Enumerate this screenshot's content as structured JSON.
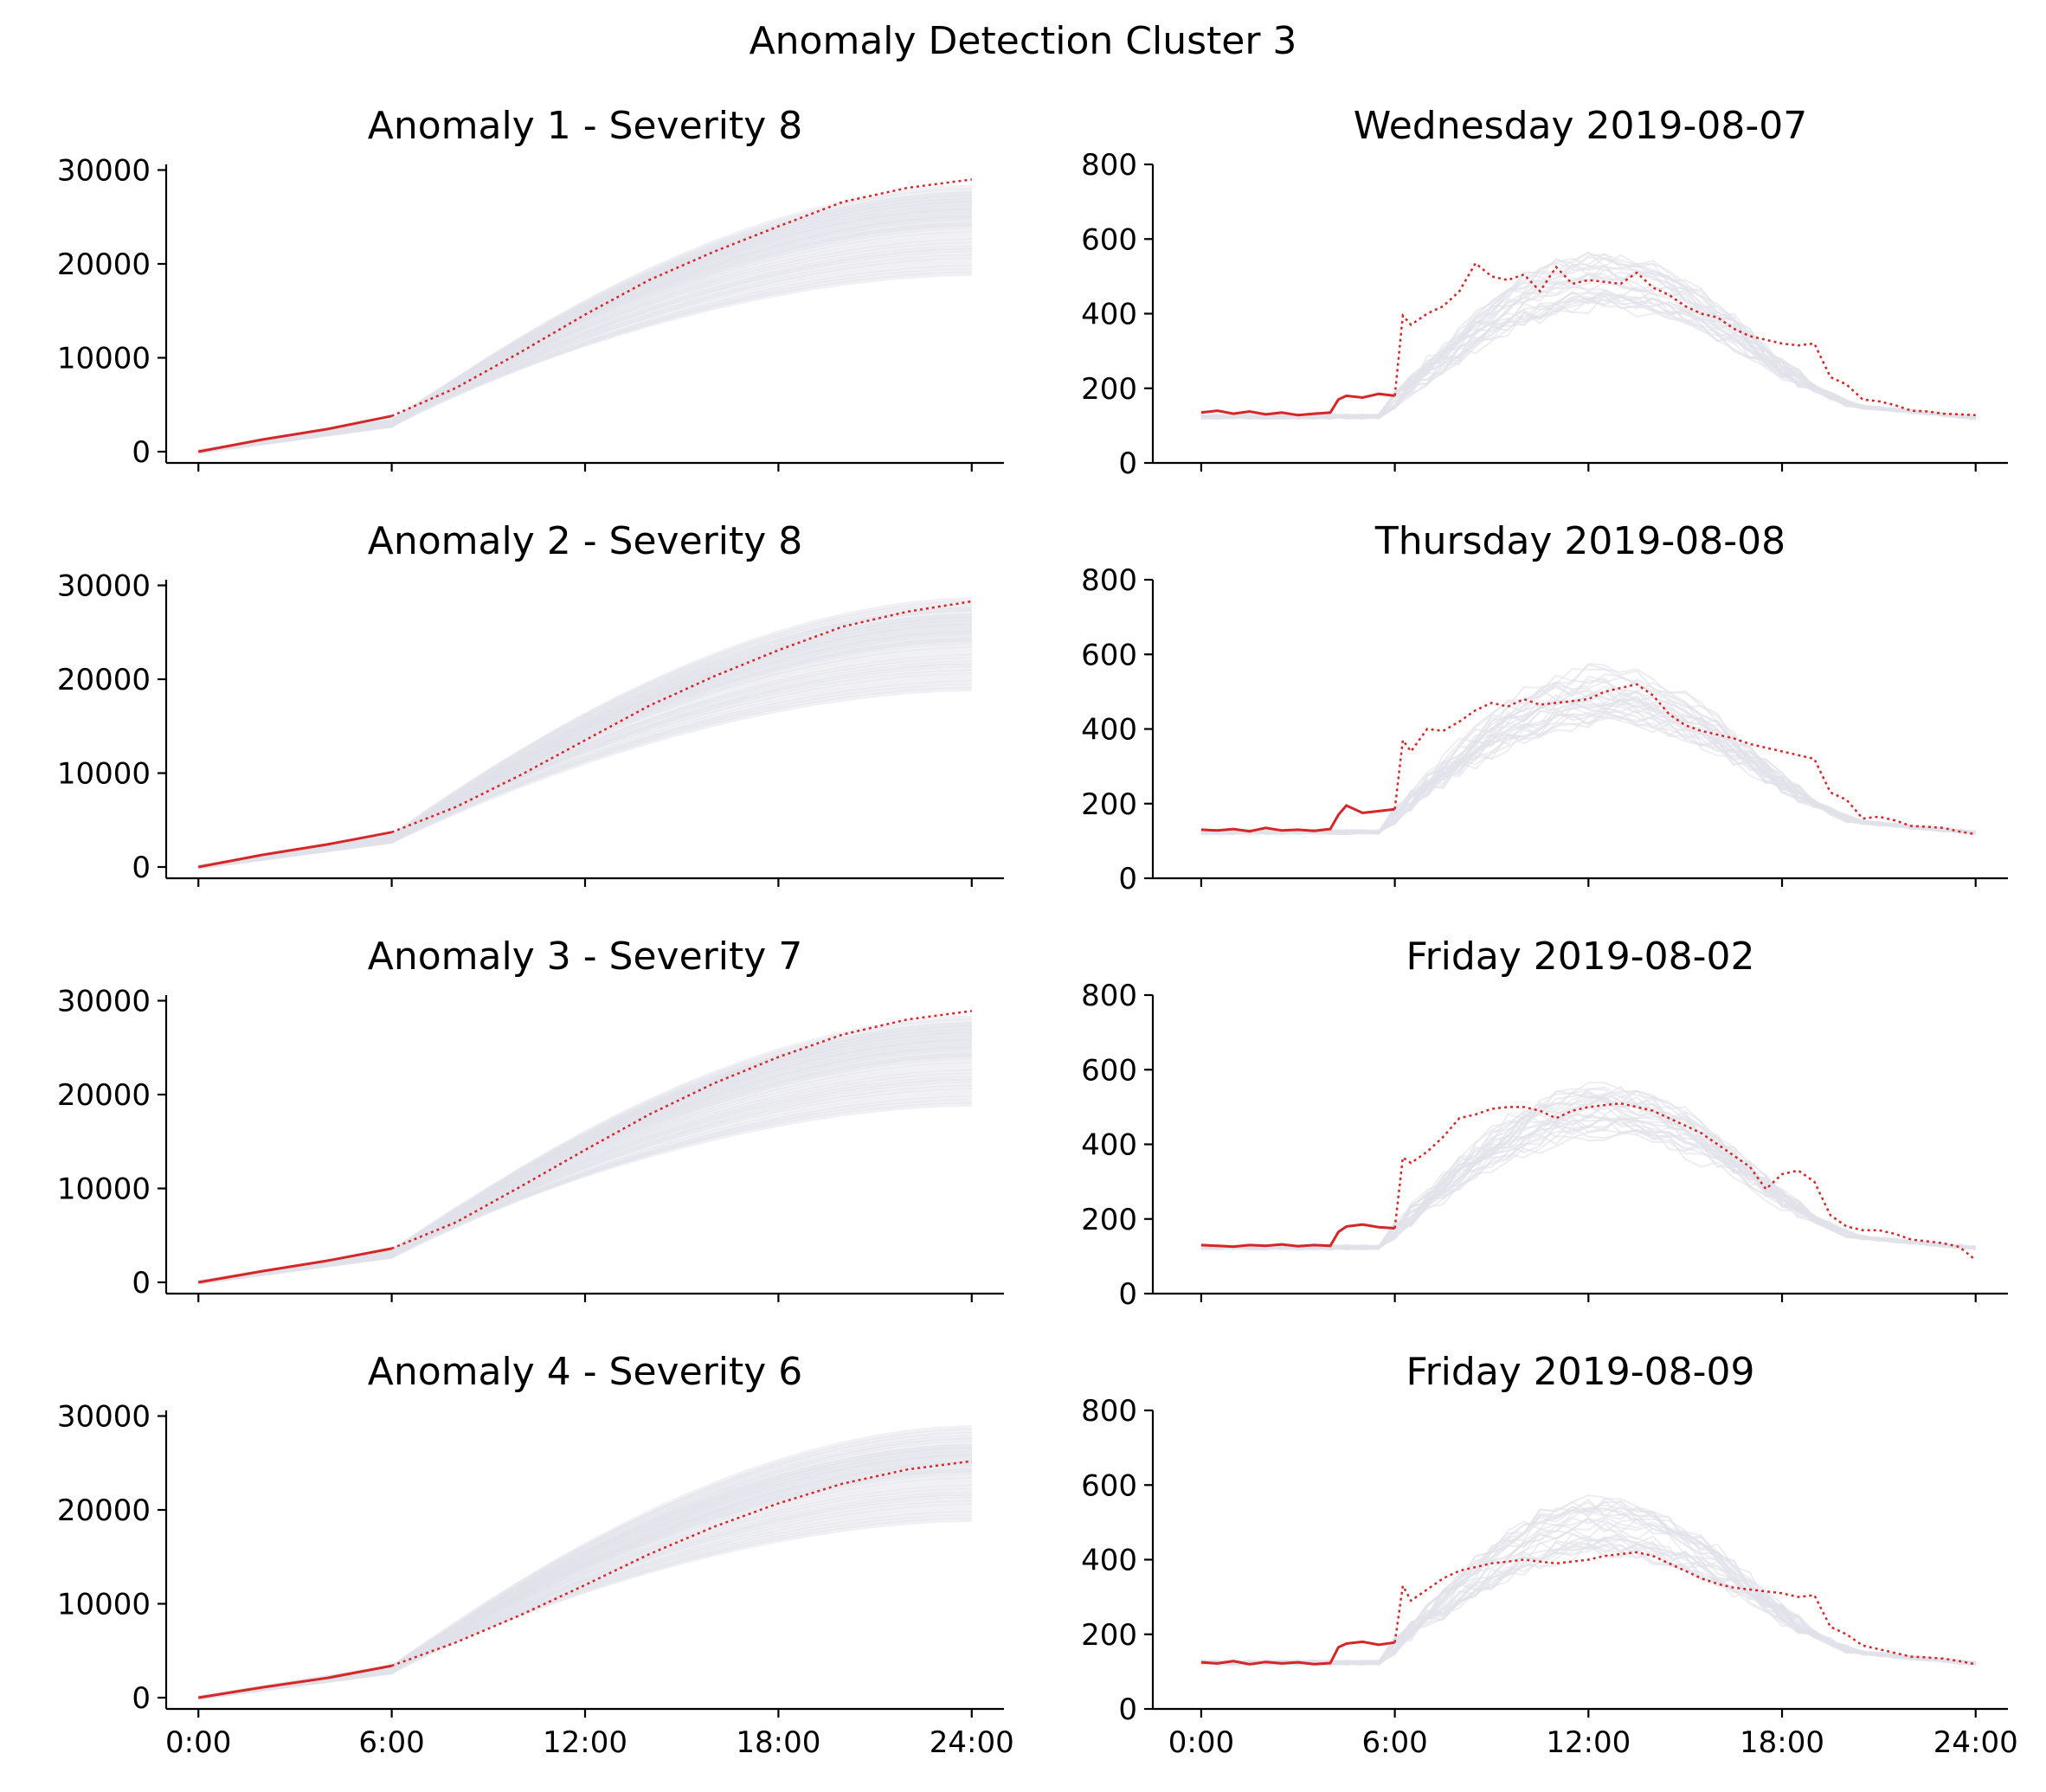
{
  "figure": {
    "title": "Anomaly Detection Cluster 3"
  },
  "colors": {
    "anomaly": "#d62728",
    "background_series": "#c9c9d9",
    "axis": "#000000"
  },
  "chart_data": [
    {
      "type": "line",
      "title": "Anomaly 1 - Severity 8",
      "x_ticks": [
        "0:00",
        "6:00",
        "12:00",
        "18:00",
        "24:00"
      ],
      "xlim": [
        -1,
        25
      ],
      "y_ticks": [
        "0",
        "10000",
        "20000",
        "30000"
      ],
      "ylim": [
        -1200,
        30600
      ],
      "x": [
        0,
        2,
        4,
        6,
        8,
        10,
        12,
        14,
        16,
        18,
        20,
        22,
        24
      ],
      "series": [
        {
          "values": [
            0,
            1300,
            2400,
            3800,
            6800,
            10600,
            14600,
            18300,
            21300,
            24000,
            26600,
            28100,
            29000
          ]
        }
      ],
      "background_end_values": [
        20000,
        21500,
        22800,
        24300,
        25200,
        26000,
        26800,
        27500,
        28200
      ],
      "observed_until": 6,
      "grid": false
    },
    {
      "type": "line",
      "title": "Wednesday 2019-08-07",
      "x_ticks": [
        "0:00",
        "6:00",
        "12:00",
        "18:00",
        "24:00"
      ],
      "xlim": [
        -1.5,
        25
      ],
      "y_ticks": [
        "0",
        "200",
        "400",
        "600",
        "800"
      ],
      "ylim": [
        0,
        800
      ],
      "x": [
        0,
        0.5,
        1,
        1.5,
        2,
        2.5,
        3,
        3.5,
        4,
        4.25,
        4.5,
        5,
        5.5,
        6,
        6.25,
        6.5,
        7,
        7.5,
        8,
        8.5,
        9,
        9.5,
        10,
        10.5,
        11,
        11.5,
        12,
        12.5,
        13,
        13.5,
        14,
        14.5,
        15,
        15.5,
        16,
        16.5,
        17,
        17.5,
        18,
        18.5,
        19,
        19.5,
        20,
        20.5,
        21,
        21.5,
        22,
        22.5,
        23,
        23.5,
        24
      ],
      "series": [
        {
          "values": [
            135,
            140,
            132,
            138,
            130,
            135,
            128,
            132,
            135,
            170,
            180,
            175,
            185,
            180,
            395,
            370,
            400,
            420,
            460,
            535,
            500,
            490,
            505,
            460,
            525,
            480,
            490,
            485,
            480,
            510,
            470,
            450,
            420,
            400,
            390,
            360,
            340,
            330,
            320,
            315,
            320,
            230,
            210,
            170,
            165,
            155,
            140,
            138,
            132,
            130,
            128
          ]
        }
      ],
      "observed_until": 6,
      "grid": false
    },
    {
      "type": "line",
      "title": "Anomaly 2 - Severity 8",
      "x_ticks": [
        "0:00",
        "6:00",
        "12:00",
        "18:00",
        "24:00"
      ],
      "xlim": [
        -1,
        25
      ],
      "y_ticks": [
        "0",
        "10000",
        "20000",
        "30000"
      ],
      "ylim": [
        -1200,
        30600
      ],
      "x": [
        0,
        2,
        4,
        6,
        8,
        10,
        12,
        14,
        16,
        18,
        20,
        22,
        24
      ],
      "series": [
        {
          "values": [
            0,
            1300,
            2400,
            3700,
            6400,
            9800,
            13500,
            17200,
            20300,
            23100,
            25600,
            27200,
            28300
          ]
        }
      ],
      "background_end_values": [
        20000,
        21500,
        22800,
        24300,
        25200,
        26000,
        26800,
        27500,
        28500
      ],
      "observed_until": 6,
      "grid": false
    },
    {
      "type": "line",
      "title": "Thursday 2019-08-08",
      "x_ticks": [
        "0:00",
        "6:00",
        "12:00",
        "18:00",
        "24:00"
      ],
      "xlim": [
        -1.5,
        25
      ],
      "y_ticks": [
        "0",
        "200",
        "400",
        "600",
        "800"
      ],
      "ylim": [
        0,
        800
      ],
      "x": [
        0,
        0.5,
        1,
        1.5,
        2,
        2.5,
        3,
        3.5,
        4,
        4.25,
        4.5,
        5,
        5.5,
        6,
        6.25,
        6.5,
        7,
        7.5,
        8,
        8.5,
        9,
        9.5,
        10,
        10.5,
        11,
        11.5,
        12,
        12.5,
        13,
        13.5,
        14,
        14.5,
        15,
        15.5,
        16,
        16.5,
        17,
        17.5,
        18,
        18.5,
        19,
        19.5,
        20,
        20.5,
        21,
        21.5,
        22,
        22.5,
        23,
        23.5,
        24
      ],
      "series": [
        {
          "values": [
            130,
            128,
            132,
            126,
            135,
            128,
            130,
            127,
            132,
            170,
            195,
            175,
            180,
            185,
            370,
            340,
            400,
            395,
            420,
            450,
            470,
            460,
            480,
            465,
            470,
            475,
            480,
            500,
            510,
            520,
            490,
            440,
            410,
            395,
            385,
            375,
            360,
            350,
            340,
            330,
            320,
            230,
            210,
            160,
            165,
            155,
            140,
            138,
            135,
            125,
            118
          ]
        }
      ],
      "observed_until": 6,
      "grid": false
    },
    {
      "type": "line",
      "title": "Anomaly 3 - Severity 7",
      "x_ticks": [
        "0:00",
        "6:00",
        "12:00",
        "18:00",
        "24:00"
      ],
      "xlim": [
        -1,
        25
      ],
      "y_ticks": [
        "0",
        "10000",
        "20000",
        "30000"
      ],
      "ylim": [
        -1200,
        30600
      ],
      "x": [
        0,
        2,
        4,
        6,
        8,
        10,
        12,
        14,
        16,
        18,
        20,
        22,
        24
      ],
      "series": [
        {
          "values": [
            0,
            1200,
            2300,
            3600,
            6400,
            10200,
            14100,
            17900,
            21200,
            24000,
            26400,
            28000,
            28900
          ]
        }
      ],
      "background_end_values": [
        20000,
        21500,
        22800,
        24300,
        25200,
        26000,
        26800,
        27500,
        28200
      ],
      "observed_until": 6,
      "grid": false
    },
    {
      "type": "line",
      "title": "Friday 2019-08-02",
      "x_ticks": [
        "0:00",
        "6:00",
        "12:00",
        "18:00",
        "24:00"
      ],
      "xlim": [
        -1.5,
        25
      ],
      "y_ticks": [
        "0",
        "200",
        "400",
        "600",
        "800"
      ],
      "ylim": [
        0,
        800
      ],
      "x": [
        0,
        0.5,
        1,
        1.5,
        2,
        2.5,
        3,
        3.5,
        4,
        4.25,
        4.5,
        5,
        5.5,
        6,
        6.25,
        6.5,
        7,
        7.5,
        8,
        8.5,
        9,
        9.5,
        10,
        10.5,
        11,
        11.5,
        12,
        12.5,
        13,
        13.5,
        14,
        14.5,
        15,
        15.5,
        16,
        16.5,
        17,
        17.5,
        18,
        18.5,
        19,
        19.5,
        20,
        20.5,
        21,
        21.5,
        22,
        22.5,
        23,
        23.5,
        24
      ],
      "series": [
        {
          "values": [
            130,
            128,
            126,
            130,
            128,
            132,
            127,
            130,
            128,
            165,
            180,
            185,
            178,
            175,
            365,
            350,
            380,
            420,
            470,
            480,
            495,
            500,
            500,
            490,
            470,
            490,
            500,
            505,
            510,
            500,
            490,
            470,
            450,
            430,
            400,
            370,
            340,
            280,
            320,
            330,
            300,
            210,
            180,
            170,
            170,
            160,
            145,
            140,
            135,
            125,
            90
          ]
        }
      ],
      "observed_until": 6,
      "grid": false
    },
    {
      "type": "line",
      "title": "Anomaly 4 - Severity 6",
      "x_ticks": [
        "0:00",
        "6:00",
        "12:00",
        "18:00",
        "24:00"
      ],
      "xlim": [
        -1,
        25
      ],
      "y_ticks": [
        "0",
        "10000",
        "20000",
        "30000"
      ],
      "ylim": [
        -1200,
        30600
      ],
      "x": [
        0,
        2,
        4,
        6,
        8,
        10,
        12,
        14,
        16,
        18,
        20,
        22,
        24
      ],
      "series": [
        {
          "values": [
            0,
            1100,
            2100,
            3400,
            5900,
            8800,
            12000,
            15300,
            18200,
            20700,
            22800,
            24300,
            25200
          ]
        }
      ],
      "background_end_values": [
        20000,
        21500,
        22800,
        24300,
        25200,
        26000,
        26800,
        27500,
        28800
      ],
      "observed_until": 6,
      "grid": false
    },
    {
      "type": "line",
      "title": "Friday 2019-08-09",
      "x_ticks": [
        "0:00",
        "6:00",
        "12:00",
        "18:00",
        "24:00"
      ],
      "xlim": [
        -1.5,
        25
      ],
      "y_ticks": [
        "0",
        "200",
        "400",
        "600",
        "800"
      ],
      "ylim": [
        0,
        800
      ],
      "x": [
        0,
        0.5,
        1,
        1.5,
        2,
        2.5,
        3,
        3.5,
        4,
        4.25,
        4.5,
        5,
        5.5,
        6,
        6.25,
        6.5,
        7,
        7.5,
        8,
        8.5,
        9,
        9.5,
        10,
        10.5,
        11,
        11.5,
        12,
        12.5,
        13,
        13.5,
        14,
        14.5,
        15,
        15.5,
        16,
        16.5,
        17,
        17.5,
        18,
        18.5,
        19,
        19.5,
        20,
        20.5,
        21,
        21.5,
        22,
        22.5,
        23,
        23.5,
        24
      ],
      "series": [
        {
          "values": [
            125,
            122,
            128,
            120,
            126,
            122,
            125,
            120,
            123,
            165,
            175,
            180,
            172,
            178,
            330,
            290,
            320,
            350,
            370,
            380,
            390,
            395,
            400,
            395,
            390,
            395,
            400,
            410,
            415,
            420,
            410,
            390,
            370,
            350,
            335,
            325,
            320,
            315,
            310,
            300,
            305,
            220,
            200,
            170,
            160,
            150,
            140,
            138,
            135,
            128,
            120
          ]
        }
      ],
      "observed_until": 6,
      "grid": false
    }
  ]
}
